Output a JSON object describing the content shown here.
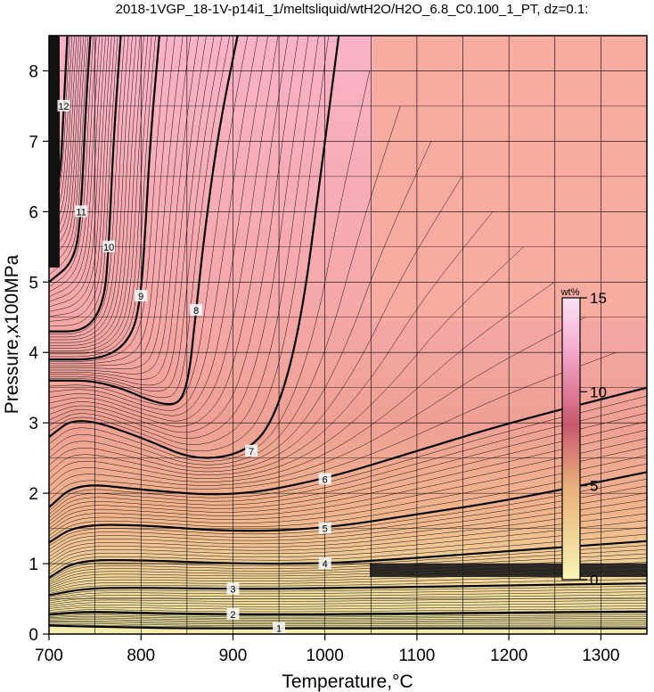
{
  "chart_data": {
    "type": "contour",
    "title": "2018-1VGP_18-1V-p14i1_1/meltsliquid/wtH2O/H2O_6.8_C0.100_1_PT, dz=0.1:",
    "xlabel": "Temperature,°C",
    "ylabel": "Pressure,x100MPa",
    "xlim": [
      700,
      1350
    ],
    "ylim": [
      0,
      8.5
    ],
    "x_ticks": [
      700,
      800,
      900,
      1000,
      1100,
      1200,
      1300
    ],
    "y_ticks": [
      0,
      1,
      2,
      3,
      4,
      5,
      6,
      7,
      8
    ],
    "grid": true,
    "colorbar": {
      "title": "wt%",
      "range": [
        0,
        15
      ],
      "ticks": [
        0,
        5,
        10,
        15
      ],
      "colors": [
        "#f7f5b4",
        "#e8b07a",
        "#c8586f",
        "#f4a6c8",
        "#fbe4f4"
      ]
    },
    "contour_interval": 0.1,
    "labeled_contours": [
      {
        "value": 1,
        "points": [
          [
            700,
            0.12
          ],
          [
            760,
            0.1
          ],
          [
            850,
            0.08
          ],
          [
            950,
            0.08
          ],
          [
            1100,
            0.08
          ],
          [
            1350,
            0.08
          ]
        ]
      },
      {
        "value": 2,
        "points": [
          [
            700,
            0.28
          ],
          [
            740,
            0.32
          ],
          [
            800,
            0.3
          ],
          [
            900,
            0.28
          ],
          [
            1000,
            0.28
          ],
          [
            1150,
            0.3
          ],
          [
            1350,
            0.32
          ]
        ]
      },
      {
        "value": 3,
        "points": [
          [
            700,
            0.55
          ],
          [
            740,
            0.65
          ],
          [
            800,
            0.66
          ],
          [
            900,
            0.64
          ],
          [
            1000,
            0.65
          ],
          [
            1150,
            0.68
          ],
          [
            1350,
            0.72
          ]
        ]
      },
      {
        "value": 4,
        "points": [
          [
            700,
            0.8
          ],
          [
            730,
            1.05
          ],
          [
            800,
            1.05
          ],
          [
            900,
            1.0
          ],
          [
            1000,
            1.0
          ],
          [
            1100,
            1.08
          ],
          [
            1200,
            1.18
          ],
          [
            1350,
            1.32
          ]
        ]
      },
      {
        "value": 5,
        "points": [
          [
            700,
            1.3
          ],
          [
            730,
            1.55
          ],
          [
            800,
            1.55
          ],
          [
            900,
            1.45
          ],
          [
            1000,
            1.5
          ],
          [
            1100,
            1.7
          ],
          [
            1200,
            1.9
          ],
          [
            1350,
            2.3
          ]
        ]
      },
      {
        "value": 6,
        "points": [
          [
            700,
            1.8
          ],
          [
            730,
            2.15
          ],
          [
            800,
            2.05
          ],
          [
            900,
            1.95
          ],
          [
            1000,
            2.2
          ],
          [
            1100,
            2.6
          ],
          [
            1200,
            3.0
          ],
          [
            1350,
            3.5
          ]
        ]
      },
      {
        "value": 7,
        "points": [
          [
            700,
            2.8
          ],
          [
            730,
            3.1
          ],
          [
            800,
            2.8
          ],
          [
            860,
            2.45
          ],
          [
            920,
            2.6
          ],
          [
            950,
            3.2
          ],
          [
            975,
            4.5
          ],
          [
            995,
            6.5
          ],
          [
            1015,
            8.5
          ]
        ]
      },
      {
        "value": 8,
        "points": [
          [
            700,
            3.6
          ],
          [
            760,
            3.6
          ],
          [
            830,
            3.2
          ],
          [
            850,
            3.4
          ],
          [
            860,
            4.6
          ],
          [
            870,
            5.8
          ],
          [
            885,
            7.2
          ],
          [
            905,
            8.5
          ]
        ]
      },
      {
        "value": 9,
        "points": [
          [
            700,
            3.9
          ],
          [
            760,
            3.9
          ],
          [
            790,
            4.2
          ],
          [
            800,
            4.8
          ],
          [
            805,
            5.8
          ],
          [
            810,
            7.0
          ],
          [
            820,
            8.5
          ]
        ]
      },
      {
        "value": 10,
        "points": [
          [
            700,
            4.3
          ],
          [
            740,
            4.3
          ],
          [
            760,
            4.7
          ],
          [
            765,
            5.5
          ],
          [
            770,
            7.0
          ],
          [
            778,
            8.5
          ]
        ]
      },
      {
        "value": 11,
        "points": [
          [
            700,
            5.0
          ],
          [
            728,
            5.3
          ],
          [
            735,
            6.0
          ],
          [
            740,
            7.5
          ],
          [
            745,
            8.5
          ]
        ]
      },
      {
        "value": 12,
        "points": [
          [
            700,
            6.0
          ],
          [
            712,
            6.4
          ],
          [
            716,
            7.5
          ],
          [
            720,
            8.5
          ]
        ]
      }
    ]
  }
}
